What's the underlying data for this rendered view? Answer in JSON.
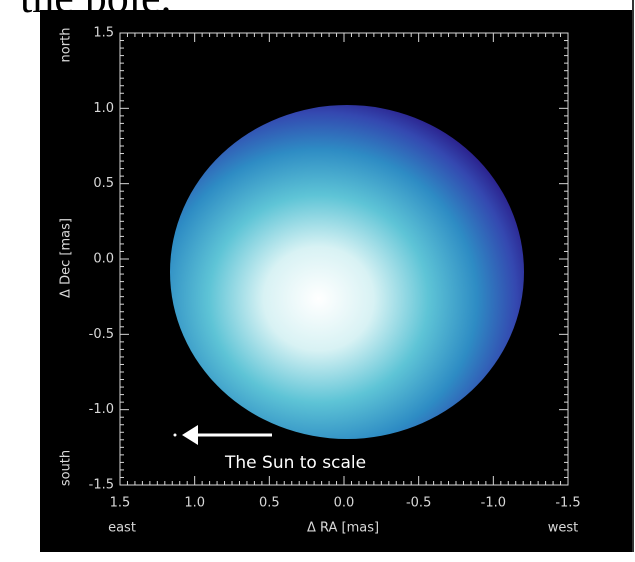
{
  "slide_text": "the pole.",
  "chart_data": {
    "type": "image",
    "xlabel": "Δ RA [mas]",
    "ylabel": "Δ Dec [mas]",
    "xlim": [
      1.5,
      -1.5
    ],
    "ylim": [
      -1.5,
      1.5
    ],
    "xticks": [
      1.5,
      {
        "value": 1,
        "label": "1.0"
      },
      0.5,
      {
        "value": 0,
        "label": "0.0"
      },
      {
        "value": -0.5,
        "label": "-0.5"
      },
      {
        "value": -1,
        "label": "-1.0"
      },
      {
        "value": -1.5,
        "label": "-1.5"
      }
    ],
    "yticks": [
      1.5,
      {
        "value": 1,
        "label": "1.0"
      },
      0.5,
      {
        "value": 0,
        "label": "0.0"
      },
      {
        "value": -0.5,
        "label": "-0.5"
      },
      {
        "value": -1,
        "label": "-1.0"
      },
      {
        "value": -1.5,
        "label": "-1.5"
      }
    ],
    "x_end_labels": [
      "east",
      "west"
    ],
    "y_end_labels": [
      "north",
      "south"
    ],
    "annotation": "The Sun to scale"
  }
}
